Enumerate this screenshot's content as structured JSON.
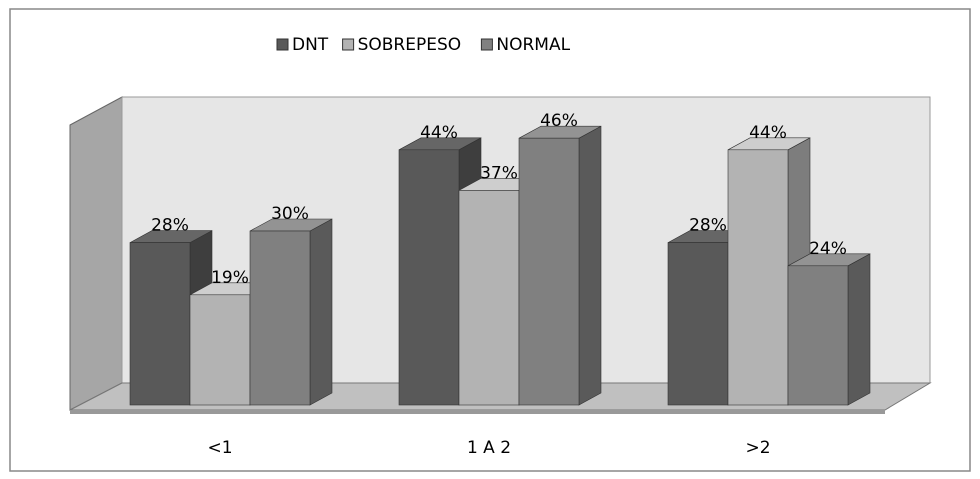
{
  "chart_data": {
    "type": "bar",
    "categories": [
      "<1",
      "1 A 2",
      ">2"
    ],
    "series": [
      {
        "name": "DNT",
        "color": "#595959",
        "values": [
          28,
          44,
          28
        ],
        "value_labels": [
          "28%",
          "44%",
          "28%"
        ]
      },
      {
        "name": "SOBREPESO",
        "color": "#b3b3b3",
        "values": [
          19,
          37,
          44
        ],
        "value_labels": [
          "19%",
          "37%",
          "44%"
        ]
      },
      {
        "name": "NORMAL",
        "color": "#808080",
        "values": [
          30,
          46,
          24
        ],
        "value_labels": [
          "30%",
          "46%",
          "24%"
        ]
      }
    ],
    "legend": "top"
  }
}
